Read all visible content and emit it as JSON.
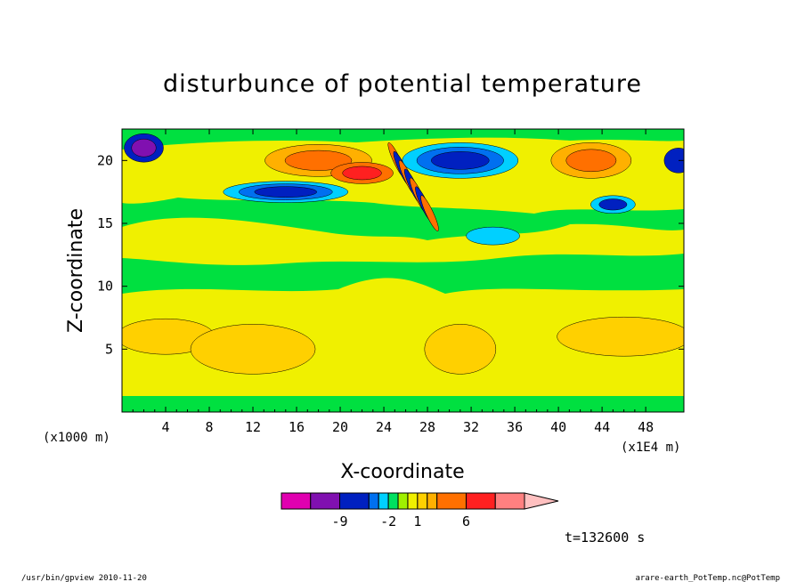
{
  "chart_data": {
    "type": "heatmap",
    "title": "disturbunce of potential temperature",
    "xlabel": "X-coordinate",
    "ylabel": "Z-coordinate",
    "x_unit": "(x1000 m)",
    "x_scale_note": "(x1E4 m)",
    "x_ticks": [
      "4",
      "8",
      "12",
      "16",
      "20",
      "24",
      "28",
      "32",
      "36",
      "40",
      "44",
      "48"
    ],
    "y_ticks": [
      "5",
      "10",
      "15",
      "20"
    ],
    "xlim": [
      0,
      51.5
    ],
    "ylim": [
      0,
      22.5
    ],
    "time_label": "t=132600 s",
    "colorbar": {
      "levels": [
        -12,
        -9,
        -6,
        -3,
        -2,
        -1,
        0,
        1,
        2,
        3,
        6,
        9,
        12
      ],
      "labels": [
        "-9",
        "-2",
        "1",
        "6"
      ],
      "colors": [
        "#e000b0",
        "#8010b0",
        "#0020c0",
        "#0070f0",
        "#00d0ff",
        "#00e060",
        "#a0f000",
        "#f0f000",
        "#ffd000",
        "#ffb000",
        "#ff7000",
        "#ff2020",
        "#ff8080"
      ],
      "extend_color": "#ffc0c0"
    },
    "features": [
      {
        "x": 4,
        "z": 6,
        "level": "positive (1 to 3)"
      },
      {
        "x": 12,
        "z": 5,
        "level": "positive (1 to 3)"
      },
      {
        "x": 18,
        "z": 20,
        "level": "positive (3 to 9)"
      },
      {
        "x": 22,
        "z": 19,
        "level": "positive (6 to 9)"
      },
      {
        "x": 22,
        "z": 18,
        "level": "negative (-6 to -3)"
      },
      {
        "x": 30,
        "z": 20,
        "level": "negative (-9 to -3)"
      },
      {
        "x": 43,
        "z": 20,
        "level": "positive (3 to 6)"
      },
      {
        "x": 46,
        "z": 6,
        "level": "positive (1 to 3)"
      },
      {
        "x": 27,
        "z": 16,
        "level": "alternating wave packet"
      }
    ]
  },
  "footer": {
    "left": "/usr/bin/gpview   2010-11-20",
    "right": "arare-earth_PotTemp.nc@PotTemp"
  }
}
